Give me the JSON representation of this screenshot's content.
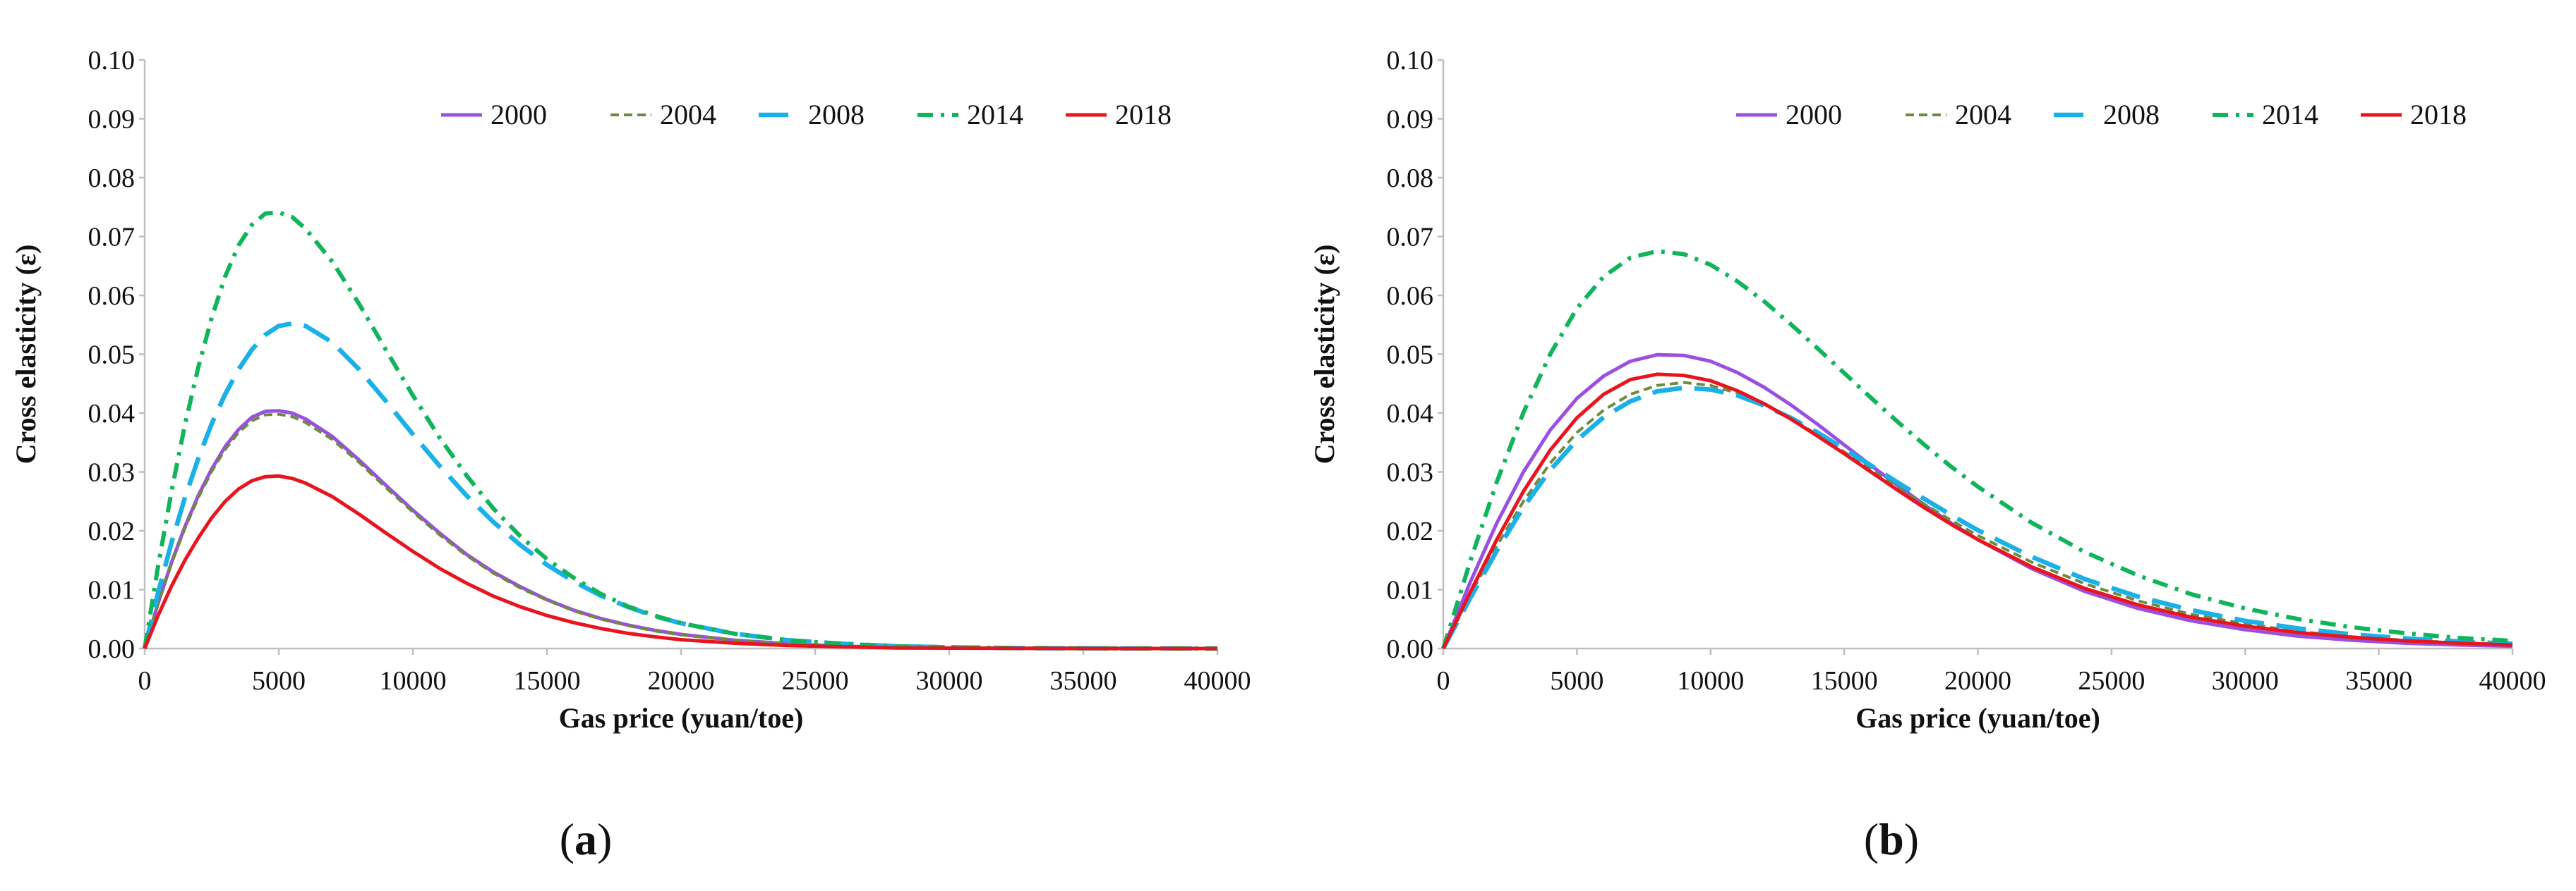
{
  "figure": {
    "panels": [
      {
        "label_open": "(",
        "label_letter": "a",
        "label_close": ")"
      },
      {
        "label_open": "(",
        "label_letter": "b",
        "label_close": ")"
      }
    ]
  },
  "chart_data": [
    {
      "type": "line",
      "panel": "a",
      "title": "",
      "xlabel": "Gas  price (yuan/toe)",
      "ylabel": "Cross elasticity (ε)",
      "xlim": [
        0,
        40000
      ],
      "ylim": [
        0,
        0.1
      ],
      "grid": false,
      "legend_position": "top-right",
      "x_ticks": [
        "0",
        "5000",
        "10000",
        "15000",
        "20000",
        "25000",
        "30000",
        "35000",
        "40000"
      ],
      "y_ticks": [
        "0.00",
        "0.01",
        "0.02",
        "0.03",
        "0.04",
        "0.05",
        "0.06",
        "0.07",
        "0.08",
        "0.09",
        "0.10"
      ],
      "x": [
        0,
        500,
        1000,
        1500,
        2000,
        2500,
        3000,
        3500,
        4000,
        4500,
        5000,
        5500,
        6000,
        7000,
        8000,
        9000,
        10000,
        11000,
        12000,
        13000,
        14000,
        15000,
        16000,
        17000,
        18000,
        19000,
        20000,
        22000,
        24000,
        26000,
        28000,
        30000,
        32000,
        34000,
        36000,
        38000,
        40000
      ],
      "series": [
        {
          "name": "2000",
          "color": "#9B4FE0",
          "dash": "solid",
          "values": [
            0,
            0.0077,
            0.0146,
            0.0207,
            0.026,
            0.0305,
            0.0343,
            0.0372,
            0.0393,
            0.0403,
            0.0404,
            0.04,
            0.039,
            0.036,
            0.032,
            0.0277,
            0.0235,
            0.0196,
            0.016,
            0.013,
            0.0105,
            0.0083,
            0.0065,
            0.0051,
            0.004,
            0.0031,
            0.0024,
            0.0014,
            0.0008,
            0.0004,
            0.0002,
            0.0001,
            5e-05,
            2e-05,
            1e-05,
            0,
            0
          ]
        },
        {
          "name": "2004",
          "color": "#6E8B3D",
          "dash": "short",
          "values": [
            0,
            0.0076,
            0.0144,
            0.0204,
            0.0256,
            0.0301,
            0.0338,
            0.0367,
            0.0387,
            0.0397,
            0.0398,
            0.0394,
            0.0384,
            0.0355,
            0.0316,
            0.0273,
            0.0232,
            0.0193,
            0.0158,
            0.0128,
            0.0103,
            0.0082,
            0.0064,
            0.005,
            0.0039,
            0.003,
            0.0023,
            0.0014,
            0.0008,
            0.0004,
            0.0002,
            0.0001,
            5e-05,
            2e-05,
            1e-05,
            0,
            0
          ]
        },
        {
          "name": "2008",
          "color": "#1AB0E8",
          "dash": "long",
          "values": [
            0,
            0.0095,
            0.018,
            0.0256,
            0.0323,
            0.0382,
            0.0432,
            0.0474,
            0.0508,
            0.0533,
            0.0548,
            0.0552,
            0.0548,
            0.052,
            0.0474,
            0.042,
            0.0364,
            0.031,
            0.026,
            0.0215,
            0.0176,
            0.0142,
            0.0114,
            0.009,
            0.0071,
            0.0055,
            0.0043,
            0.0025,
            0.0014,
            0.0008,
            0.0004,
            0.0002,
            0.0001,
            5e-05,
            2e-05,
            1e-05,
            0
          ]
        },
        {
          "name": "2014",
          "color": "#10B45A",
          "dash": "dashdot",
          "values": [
            0,
            0.014,
            0.0267,
            0.038,
            0.0478,
            0.0562,
            0.0632,
            0.0685,
            0.072,
            0.0739,
            0.0741,
            0.0733,
            0.0713,
            0.0657,
            0.0585,
            0.0507,
            0.043,
            0.0358,
            0.0294,
            0.0238,
            0.0191,
            0.0152,
            0.012,
            0.0093,
            0.0072,
            0.0056,
            0.0043,
            0.0025,
            0.0014,
            0.0008,
            0.0004,
            0.0002,
            0.0001,
            5e-05,
            2e-05,
            1e-05,
            0
          ]
        },
        {
          "name": "2018",
          "color": "#E8141E",
          "dash": "solid",
          "values": [
            0,
            0.0056,
            0.0106,
            0.015,
            0.0188,
            0.0222,
            0.025,
            0.0271,
            0.0285,
            0.0292,
            0.0293,
            0.0289,
            0.0281,
            0.0258,
            0.0228,
            0.0196,
            0.0165,
            0.0136,
            0.0111,
            0.0089,
            0.0071,
            0.0056,
            0.0044,
            0.0034,
            0.0026,
            0.002,
            0.0015,
            0.0009,
            0.0005,
            0.0003,
            0.0001,
            6e-05,
            3e-05,
            1e-05,
            0,
            0,
            0
          ]
        }
      ]
    },
    {
      "type": "line",
      "panel": "b",
      "title": "",
      "xlabel": "Gas  price (yuan/toe)",
      "ylabel": "Cross elasticity (ε)",
      "xlim": [
        0,
        40000
      ],
      "ylim": [
        0,
        0.1
      ],
      "grid": false,
      "legend_position": "top-right",
      "x_ticks": [
        "0",
        "5000",
        "10000",
        "15000",
        "20000",
        "25000",
        "30000",
        "35000",
        "40000"
      ],
      "y_ticks": [
        "0.00",
        "0.01",
        "0.02",
        "0.03",
        "0.04",
        "0.05",
        "0.06",
        "0.07",
        "0.08",
        "0.09",
        "0.10"
      ],
      "x": [
        0,
        1000,
        2000,
        3000,
        4000,
        5000,
        6000,
        7000,
        8000,
        9000,
        10000,
        11000,
        12000,
        13000,
        14000,
        15000,
        16000,
        17000,
        18000,
        19000,
        20000,
        22000,
        24000,
        26000,
        28000,
        30000,
        32000,
        34000,
        36000,
        38000,
        40000
      ],
      "series": [
        {
          "name": "2000",
          "color": "#9B4FE0",
          "dash": "solid",
          "values": [
            0,
            0.0112,
            0.0213,
            0.03,
            0.0371,
            0.0425,
            0.0463,
            0.0488,
            0.0499,
            0.0498,
            0.0488,
            0.0469,
            0.0444,
            0.0414,
            0.0381,
            0.0346,
            0.0311,
            0.0277,
            0.0244,
            0.0213,
            0.0185,
            0.0136,
            0.0097,
            0.0068,
            0.0047,
            0.0032,
            0.0021,
            0.0014,
            0.0009,
            0.0006,
            0.0004
          ]
        },
        {
          "name": "2004",
          "color": "#6E8B3D",
          "dash": "short",
          "values": [
            0,
            0.009,
            0.0174,
            0.025,
            0.0315,
            0.0367,
            0.0405,
            0.0432,
            0.0447,
            0.0452,
            0.0447,
            0.0434,
            0.0415,
            0.0391,
            0.0363,
            0.0334,
            0.0304,
            0.0274,
            0.0245,
            0.0218,
            0.0192,
            0.0147,
            0.011,
            0.0081,
            0.0058,
            0.0042,
            0.0029,
            0.002,
            0.0014,
            0.001,
            0.0007
          ]
        },
        {
          "name": "2008",
          "color": "#1AB0E8",
          "dash": "long",
          "values": [
            0,
            0.0085,
            0.0166,
            0.024,
            0.0303,
            0.0354,
            0.0393,
            0.042,
            0.0437,
            0.0443,
            0.044,
            0.043,
            0.0413,
            0.0392,
            0.0367,
            0.0339,
            0.0311,
            0.0282,
            0.0254,
            0.0227,
            0.0201,
            0.0156,
            0.0118,
            0.0088,
            0.0065,
            0.0047,
            0.0034,
            0.0024,
            0.0017,
            0.0012,
            0.0008
          ]
        },
        {
          "name": "2014",
          "color": "#10B45A",
          "dash": "dashdot",
          "values": [
            0,
            0.0147,
            0.0283,
            0.0401,
            0.05,
            0.0578,
            0.0632,
            0.0664,
            0.0675,
            0.067,
            0.0652,
            0.0624,
            0.059,
            0.0551,
            0.051,
            0.0468,
            0.0426,
            0.0385,
            0.0346,
            0.0309,
            0.0275,
            0.0214,
            0.0164,
            0.0124,
            0.0092,
            0.0068,
            0.005,
            0.0036,
            0.0026,
            0.0018,
            0.0013
          ]
        },
        {
          "name": "2018",
          "color": "#E8141E",
          "dash": "solid",
          "values": [
            0,
            0.0095,
            0.0185,
            0.0267,
            0.0337,
            0.0392,
            0.0432,
            0.0457,
            0.0466,
            0.0464,
            0.0455,
            0.0438,
            0.0416,
            0.039,
            0.0361,
            0.0331,
            0.03,
            0.0269,
            0.0239,
            0.0211,
            0.0185,
            0.0139,
            0.0102,
            0.0074,
            0.0053,
            0.0038,
            0.0027,
            0.0019,
            0.0013,
            0.0009,
            0.0006
          ]
        }
      ]
    }
  ]
}
